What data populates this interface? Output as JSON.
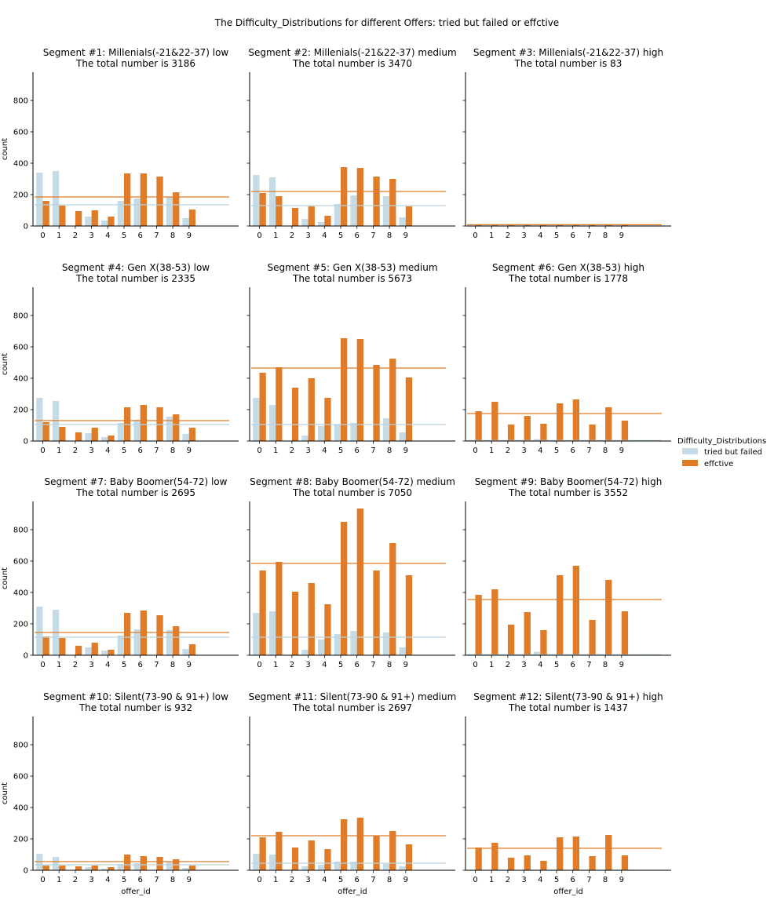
{
  "chart_data": {
    "type": "bar",
    "title": "The Difficulty_Distributions for different Offers: tried but failed or effctive",
    "xlabel": "offer_id",
    "ylabel": "count",
    "ylim": [
      0,
      980
    ],
    "yticks": [
      0,
      200,
      400,
      600,
      800
    ],
    "categories": [
      "0",
      "1",
      "2",
      "3",
      "4",
      "5",
      "6",
      "7",
      "8",
      "9"
    ],
    "colors": {
      "tried but failed": "#c5dbe6",
      "effctive": "#e07b27"
    },
    "legend": {
      "title": "Difficulty_Distributions",
      "position": "center-right",
      "entries": [
        "tried but failed",
        "effctive"
      ]
    },
    "panels": [
      {
        "title": "Segment #1: Millenials(-21&22-37) low",
        "total_label": "The total number is 3186",
        "series": [
          {
            "name": "tried but failed",
            "values": [
              340,
              350,
              0,
              60,
              35,
              160,
              175,
              0,
              185,
              50
            ],
            "mean": 135
          },
          {
            "name": "effctive",
            "values": [
              160,
              130,
              95,
              100,
              60,
              335,
              335,
              315,
              215,
              105
            ],
            "mean": 185
          }
        ]
      },
      {
        "title": "Segment #2: Millenials(-21&22-37) medium",
        "total_label": "The total number is 3470",
        "series": [
          {
            "name": "tried but failed",
            "values": [
              325,
              310,
              0,
              45,
              25,
              140,
              195,
              0,
              190,
              55
            ],
            "mean": 130
          },
          {
            "name": "effctive",
            "values": [
              210,
              190,
              115,
              125,
              65,
              375,
              370,
              315,
              300,
              125
            ],
            "mean": 220
          }
        ]
      },
      {
        "title": "Segment #3: Millenials(-21&22-37) high",
        "total_label": "The total number is 83",
        "series": [
          {
            "name": "tried but failed",
            "values": [
              0,
              0,
              0,
              0,
              0,
              0,
              0,
              0,
              0,
              0
            ],
            "mean": 0
          },
          {
            "name": "effctive",
            "values": [
              8,
              9,
              7,
              8,
              6,
              9,
              9,
              8,
              10,
              9
            ],
            "mean": 8
          }
        ]
      },
      {
        "title": "Segment #4: Gen X(38-53) low",
        "total_label": "The total number is 2335",
        "series": [
          {
            "name": "tried but failed",
            "values": [
              275,
              255,
              0,
              50,
              25,
              115,
              135,
              0,
              155,
              45
            ],
            "mean": 105
          },
          {
            "name": "effctive",
            "values": [
              120,
              90,
              55,
              85,
              35,
              215,
              230,
              215,
              170,
              85
            ],
            "mean": 130
          }
        ]
      },
      {
        "title": "Segment #5: Gen X(38-53) medium",
        "total_label": "The total number is 5673",
        "series": [
          {
            "name": "tried but failed",
            "values": [
              275,
              230,
              0,
              35,
              95,
              105,
              115,
              0,
              145,
              55
            ],
            "mean": 105
          },
          {
            "name": "effctive",
            "values": [
              435,
              470,
              340,
              400,
              275,
              655,
              650,
              485,
              525,
              405
            ],
            "mean": 465
          }
        ]
      },
      {
        "title": "Segment #6: Gen X(38-53) high",
        "total_label": "The total number is 1778",
        "series": [
          {
            "name": "tried but failed",
            "values": [
              0,
              0,
              0,
              0,
              12,
              0,
              0,
              0,
              0,
              0
            ],
            "mean": 3
          },
          {
            "name": "effctive",
            "values": [
              190,
              250,
              105,
              160,
              110,
              240,
              265,
              105,
              215,
              130
            ],
            "mean": 175
          }
        ]
      },
      {
        "title": "Segment #7: Baby Boomer(54-72) low",
        "total_label": "The total number is 2695",
        "series": [
          {
            "name": "tried but failed",
            "values": [
              310,
              290,
              0,
              50,
              30,
              125,
              165,
              0,
              160,
              40
            ],
            "mean": 115
          },
          {
            "name": "effctive",
            "values": [
              120,
              110,
              60,
              80,
              35,
              270,
              285,
              255,
              185,
              70
            ],
            "mean": 145
          }
        ]
      },
      {
        "title": "Segment #8: Baby Boomer(54-72) medium",
        "total_label": "The total number is 7050",
        "series": [
          {
            "name": "tried but failed",
            "values": [
              270,
              280,
              0,
              35,
              100,
              135,
              155,
              0,
              145,
              50
            ],
            "mean": 115
          },
          {
            "name": "effctive",
            "values": [
              540,
              595,
              405,
              460,
              325,
              850,
              935,
              540,
              715,
              510
            ],
            "mean": 585
          }
        ]
      },
      {
        "title": "Segment #9: Baby Boomer(54-72) high",
        "total_label": "The total number is 3552",
        "series": [
          {
            "name": "tried but failed",
            "values": [
              0,
              0,
              0,
              0,
              22,
              0,
              0,
              0,
              0,
              0
            ],
            "mean": 3
          },
          {
            "name": "effctive",
            "values": [
              385,
              420,
              195,
              275,
              160,
              510,
              570,
              225,
              480,
              280
            ],
            "mean": 355
          }
        ]
      },
      {
        "title": "Segment #10: Silent(73-90 & 91+) low",
        "total_label": "The total number is 932",
        "series": [
          {
            "name": "tried but failed",
            "values": [
              105,
              85,
              0,
              20,
              10,
              40,
              45,
              0,
              55,
              15
            ],
            "mean": 35
          },
          {
            "name": "effctive",
            "values": [
              30,
              30,
              25,
              30,
              20,
              100,
              90,
              85,
              70,
              30
            ],
            "mean": 55
          }
        ]
      },
      {
        "title": "Segment #11: Silent(73-90 & 91+) medium",
        "total_label": "The total number is 2697",
        "series": [
          {
            "name": "tried but failed",
            "values": [
              105,
              100,
              0,
              25,
              35,
              55,
              55,
              0,
              40,
              25
            ],
            "mean": 45
          },
          {
            "name": "effctive",
            "values": [
              210,
              245,
              145,
              190,
              135,
              325,
              335,
              220,
              250,
              165
            ],
            "mean": 220
          }
        ]
      },
      {
        "title": "Segment #12: Silent(73-90 & 91+) high",
        "total_label": "The total number is 1437",
        "series": [
          {
            "name": "tried but failed",
            "values": [
              0,
              0,
              0,
              0,
              0,
              0,
              0,
              0,
              0,
              0
            ],
            "mean": 0
          },
          {
            "name": "effctive",
            "values": [
              145,
              175,
              80,
              95,
              60,
              210,
              215,
              90,
              225,
              95
            ],
            "mean": 140
          }
        ]
      }
    ]
  }
}
